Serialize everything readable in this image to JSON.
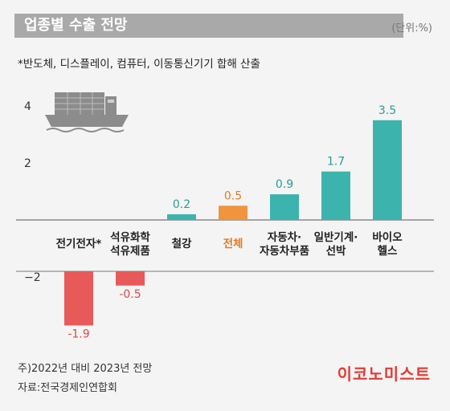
{
  "header": {
    "title": "업종별 수출 전망",
    "unit": "(단위:%)"
  },
  "footnote_top": "*반도체, 디스플레이, 컴퓨터, 이동통신기기 합해 산출",
  "notes": {
    "line1": "주)2022년 대비 2023년 전망",
    "line2": "자료:전국경제인연합회"
  },
  "brand": "이코노미스트",
  "icon": "cargo-ship-icon",
  "colors": {
    "positive": "#3cb4ad",
    "negative": "#e85a5a",
    "highlight": "#f0953e",
    "highlight_label": "#e07b25",
    "positive_label": "#2a9d96",
    "negative_label": "#e04848"
  },
  "chart_data": {
    "type": "bar",
    "categories": [
      [
        "전기전자*"
      ],
      [
        "석유화학",
        "석유제품"
      ],
      [
        "철강"
      ],
      [
        "전체"
      ],
      [
        "자동차·",
        "자동차부품"
      ],
      [
        "일반기계·",
        "선박"
      ],
      [
        "바이오",
        "헬스"
      ]
    ],
    "values": [
      -1.9,
      -0.5,
      0.2,
      0.5,
      0.9,
      1.7,
      3.5
    ],
    "value_labels": [
      "-1.9",
      "-0.5",
      "0.2",
      "0.5",
      "0.9",
      "1.7",
      "3.5"
    ],
    "highlight_index": 3,
    "y_ticks": [
      4,
      2,
      -2
    ],
    "y_tick_labels": [
      "4",
      "2",
      "−2"
    ],
    "ylim": [
      -2,
      4.2
    ],
    "grid": false
  }
}
